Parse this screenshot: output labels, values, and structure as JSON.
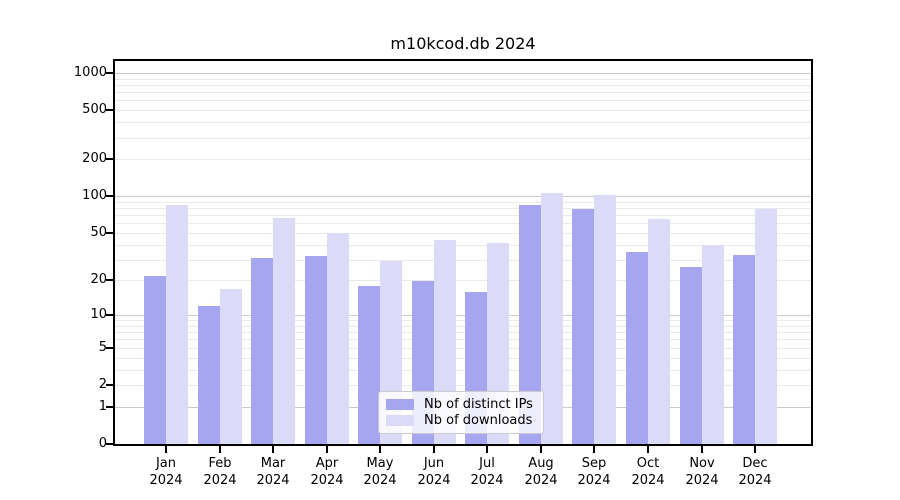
{
  "chart_data": {
    "type": "bar",
    "title": "m10kcod.db 2024",
    "x_year": "2024",
    "categories": [
      "Jan",
      "Feb",
      "Mar",
      "Apr",
      "May",
      "Jun",
      "Jul",
      "Aug",
      "Sep",
      "Oct",
      "Nov",
      "Dec"
    ],
    "series": [
      {
        "name": "Nb of distinct IPs",
        "color": "#a5a5f0",
        "values": [
          22,
          12,
          31,
          32,
          18,
          20,
          16,
          84,
          79,
          35,
          26,
          33
        ]
      },
      {
        "name": "Nb of downloads",
        "color": "#dbdbf7",
        "values": [
          85,
          17,
          66,
          50,
          29,
          44,
          41,
          106,
          103,
          65,
          40,
          79
        ]
      }
    ],
    "y_scale": "log10(value+1)",
    "ylim": [
      0,
      1250
    ],
    "y_ticks": [
      0,
      1,
      2,
      5,
      10,
      20,
      50,
      100,
      200,
      500,
      1000
    ],
    "grid": {
      "orientation": "horizontal",
      "major_lines": [
        1,
        10,
        100,
        1000
      ],
      "minor_multipliers": [
        2,
        3,
        4,
        5,
        6,
        7,
        8,
        9
      ],
      "minor_decades": [
        1,
        10,
        100
      ]
    },
    "legend_position": "lower center"
  },
  "colors": {
    "grid_major": "#c9c9c9",
    "grid_minor": "#eaeaea",
    "frame": "#000000",
    "text": "#000000",
    "legend_border": "#cccccc"
  }
}
